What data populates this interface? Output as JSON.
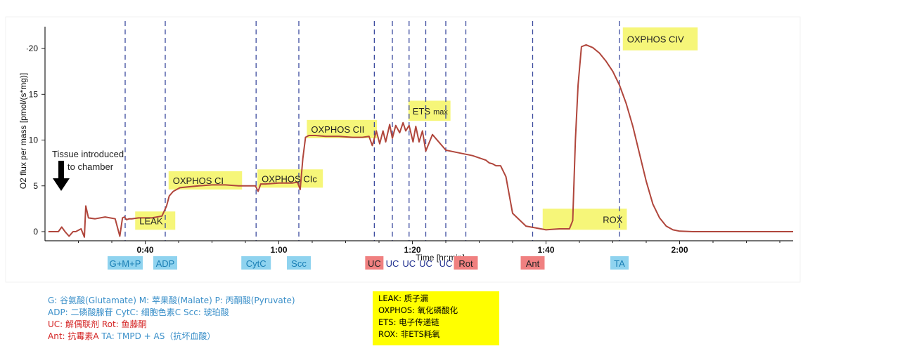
{
  "chart_data": {
    "type": "line",
    "xlabel": "Time [hr:min]",
    "ylabel": "O2 flux per mass [pmol/(s*mg)]",
    "xlim": [
      25,
      137
    ],
    "ylim": [
      -1,
      23
    ],
    "xticks": [
      40,
      60,
      80,
      100,
      120
    ],
    "xtick_labels": [
      "0:40",
      "1:00",
      "1:20",
      "1:40",
      "2:00"
    ],
    "yticks": [
      0,
      5,
      10,
      15,
      20
    ],
    "ytick_labels": [
      "0",
      "5",
      "10",
      "15",
      "·20"
    ],
    "series": [
      {
        "color": "#b0463c",
        "x": [
          25.5,
          27,
          27.5,
          28,
          28.6,
          29.2,
          29.6,
          30.4,
          30.9,
          31.1,
          31.5,
          32.5,
          34,
          35.5,
          36.2,
          36.6,
          36.9,
          37.2,
          37.6,
          38,
          39,
          41,
          42.5,
          43.2,
          43.6,
          44.2,
          45.2,
          46.5,
          48,
          50,
          52,
          54,
          55.5,
          56.5,
          56.9,
          57.3,
          58,
          60,
          62,
          62.8,
          63.2,
          63.6,
          64,
          64.5,
          65.5,
          67,
          69,
          71,
          72.5,
          73.5,
          74,
          74.6,
          75.1,
          75.6,
          76,
          76.6,
          77,
          77.5,
          78.1,
          78.6,
          79,
          79.5,
          80.1,
          80.5,
          81,
          81.5,
          82,
          83,
          85,
          87,
          89,
          91,
          91.5,
          92,
          92.5,
          93.2,
          94,
          95,
          97,
          100,
          102,
          103.5,
          104,
          104.4,
          104.8,
          105.3,
          106,
          107,
          108,
          109,
          110,
          111,
          112,
          113,
          114,
          115,
          116,
          117,
          118,
          119,
          120,
          122,
          126,
          130,
          137
        ],
        "values": [
          0,
          0,
          0.5,
          0,
          -0.5,
          0,
          0,
          0.3,
          -0.6,
          2.8,
          1.5,
          1.4,
          1.6,
          1.4,
          -0.5,
          1.5,
          1.6,
          1.3,
          1.4,
          1.4,
          1.5,
          1.5,
          1.7,
          2.8,
          3.9,
          4.4,
          4.8,
          4.9,
          5,
          5.1,
          5.1,
          5,
          5,
          5,
          4.4,
          5.2,
          5.2,
          5.3,
          5.3,
          5.4,
          4.6,
          8,
          10.3,
          10.5,
          10.5,
          10.4,
          10.4,
          10.3,
          10.3,
          10.4,
          9.4,
          11,
          9.6,
          11,
          9.8,
          11.7,
          10.2,
          11.6,
          10.8,
          11.9,
          11,
          11.6,
          9.8,
          11.5,
          9.8,
          11,
          8.8,
          10.6,
          8.9,
          8.6,
          8.3,
          7.8,
          7.5,
          7.4,
          7.2,
          7.2,
          6,
          2,
          0.6,
          0.2,
          0.3,
          0.3,
          1.2,
          10,
          16,
          20.2,
          20.4,
          20.1,
          19.5,
          18.6,
          17.5,
          16,
          14,
          11.5,
          8.5,
          5.5,
          3,
          1.5,
          0.6,
          0.2,
          0.05,
          0,
          0,
          0,
          0
        ]
      }
    ],
    "injections": [
      {
        "x": 37,
        "label": "G+M+P",
        "bg": "#8fd3ef",
        "color": "#1a7fb5"
      },
      {
        "x": 43,
        "label": "ADP",
        "bg": "#8fd3ef",
        "color": "#1a7fb5"
      },
      {
        "x": 56.6,
        "label": "CytC",
        "bg": "#8fd3ef",
        "color": "#1a7fb5"
      },
      {
        "x": 63,
        "label": "Scc",
        "bg": "#8fd3ef",
        "color": "#1a7fb5"
      },
      {
        "x": 74.3,
        "label": "UC",
        "bg": "#f08080",
        "color": "#222222"
      },
      {
        "x": 77,
        "label": "UC",
        "bg": "",
        "color": "#1f2f8f"
      },
      {
        "x": 79.5,
        "label": "UC",
        "bg": "",
        "color": "#1f2f8f"
      },
      {
        "x": 82,
        "label": "UC",
        "bg": "",
        "color": "#1f2f8f"
      },
      {
        "x": 85,
        "label": "UC",
        "bg": "",
        "color": "#1f2f8f"
      },
      {
        "x": 88,
        "label": "Rot",
        "bg": "#f08080",
        "color": "#222222"
      },
      {
        "x": 98,
        "label": "Ant",
        "bg": "#f08080",
        "color": "#222222"
      },
      {
        "x": 111,
        "label": "TA",
        "bg": "#8fd3ef",
        "color": "#1a7fb5"
      }
    ],
    "dashed_line_x": [
      37,
      43,
      56.6,
      63,
      74.3,
      77,
      79.5,
      82,
      85,
      88,
      98,
      111
    ],
    "phase_labels": [
      {
        "text": "LEAK",
        "x": 38.5,
        "y": 2.2,
        "w": 6,
        "h": 2
      },
      {
        "text": "OXPHOS CI",
        "x": 43.5,
        "y": 6.6,
        "w": 11,
        "h": 2
      },
      {
        "text": "OXPHOS CIc",
        "x": 56.8,
        "y": 6.8,
        "w": 9.8,
        "h": 2
      },
      {
        "text": "OXPHOS CII",
        "x": 64.2,
        "y": 12.2,
        "w": 10.5,
        "h": 2
      },
      {
        "text": "ETS",
        "x": 79.4,
        "y": 14.3,
        "w": 6.3,
        "h": 2.2,
        "sub": "max"
      },
      {
        "text": "ROX",
        "x": 99.5,
        "y": 2.5,
        "w": 12.6,
        "h": 2.3,
        "align": "right"
      },
      {
        "text": "OXPHOS CIV",
        "x": 111.5,
        "y": 22.3,
        "w": 11.2,
        "h": 2.5
      }
    ],
    "annotation": {
      "line1": "Tissue introduced",
      "line2": "to chamber"
    }
  },
  "legend_left": [
    {
      "color": "#3a8fc9",
      "text": "G: 谷氨酸(Glutamate)   M: 苹果酸(Malate)   P: 丙酮酸(Pyruvate)"
    },
    {
      "color": "#3a8fc9",
      "text": "ADP: 二磷酸腺苷   CytC: 细胞色素C   Scc: 琥珀酸"
    },
    {
      "color": "#d42424",
      "text": "UC: 解偶联剂  Rot: 鱼藤酮"
    },
    {
      "color": "#d42424",
      "text": "Ant: 抗霉素A",
      "color2": "#3a8fc9",
      "text2": "  TA: TMPD + AS（抗坏血酸）"
    }
  ],
  "legend_right": [
    "LEAK: 质子漏",
    "OXPHOS: 氧化磷酸化",
    "ETS: 电子传递链",
    "ROX: 非ETS耗氧"
  ]
}
